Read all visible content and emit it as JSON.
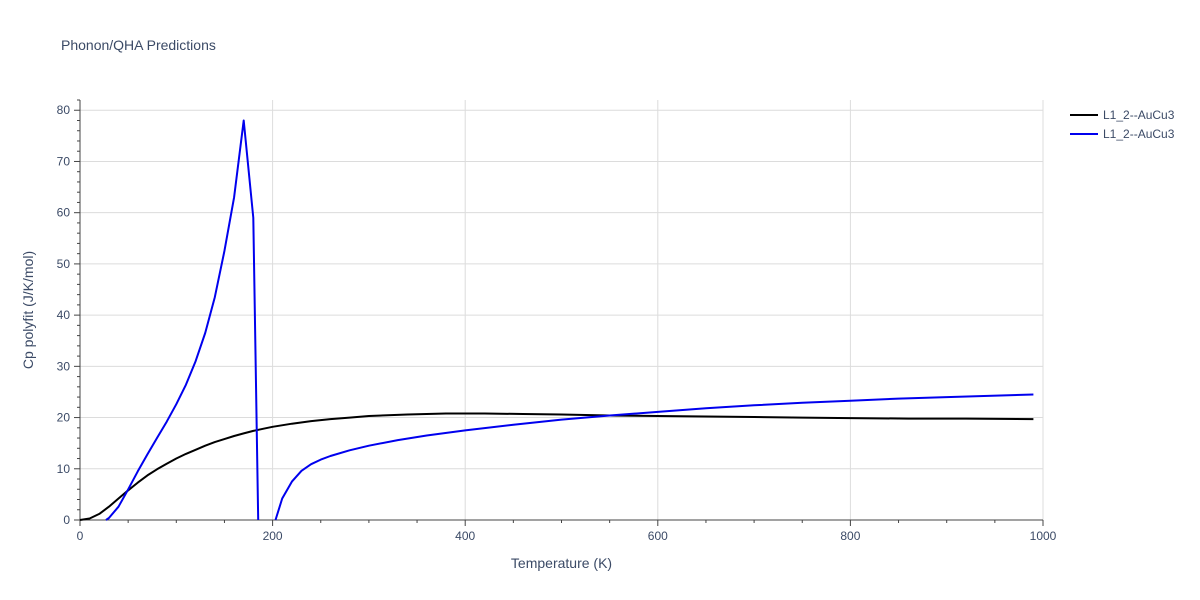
{
  "chart_data": {
    "type": "line",
    "title": "Phonon/QHA Predictions",
    "xlabel": "Temperature (K)",
    "ylabel": "Cp polyfit (J/K/mol)",
    "xlim": [
      0,
      1000
    ],
    "ylim": [
      0,
      82
    ],
    "x_ticks": [
      0,
      200,
      400,
      600,
      800,
      1000
    ],
    "y_ticks": [
      0,
      10,
      20,
      30,
      40,
      50,
      60,
      70,
      80
    ],
    "x_tick_labels": [
      "0",
      "200",
      "400",
      "600",
      "800",
      "1000"
    ],
    "y_tick_labels": [
      "0",
      "10",
      "20",
      "30",
      "40",
      "50",
      "60",
      "70",
      "80"
    ],
    "grid": true,
    "legend_position": "top-right",
    "series": [
      {
        "name": "L1_2--AuCu3",
        "color": "#000000",
        "x": [
          0,
          10,
          20,
          30,
          40,
          50,
          60,
          70,
          80,
          90,
          100,
          110,
          120,
          130,
          140,
          150,
          160,
          170,
          180,
          190,
          200,
          220,
          240,
          260,
          280,
          300,
          340,
          380,
          420,
          460,
          500,
          550,
          600,
          650,
          700,
          750,
          800,
          860,
          920,
          990
        ],
        "y": [
          0,
          0.3,
          1.2,
          2.6,
          4.2,
          5.8,
          7.3,
          8.7,
          9.9,
          11.0,
          12.0,
          12.9,
          13.7,
          14.5,
          15.2,
          15.8,
          16.4,
          16.9,
          17.4,
          17.8,
          18.2,
          18.8,
          19.3,
          19.7,
          20.0,
          20.3,
          20.6,
          20.8,
          20.8,
          20.7,
          20.6,
          20.4,
          20.3,
          20.2,
          20.1,
          20.0,
          19.9,
          19.8,
          19.8,
          19.7
        ]
      },
      {
        "name": "L1_2--AuCu3",
        "color": "#0000ee",
        "x": [
          0,
          27,
          30,
          40,
          50,
          60,
          70,
          80,
          90,
          100,
          110,
          120,
          130,
          140,
          150,
          160,
          170,
          180,
          185,
          186,
          200,
          203,
          210,
          220,
          230,
          240,
          250,
          260,
          280,
          300,
          330,
          360,
          400,
          450,
          500,
          550,
          600,
          650,
          700,
          750,
          800,
          850,
          900,
          990
        ],
        "y": [
          null,
          0,
          0.4,
          2.6,
          6.0,
          9.5,
          12.8,
          16.0,
          19.2,
          22.6,
          26.4,
          31.0,
          36.5,
          43.5,
          52.5,
          63.0,
          78.0,
          59.0,
          0,
          null,
          null,
          0,
          4.2,
          7.5,
          9.6,
          10.9,
          11.8,
          12.5,
          13.6,
          14.5,
          15.6,
          16.5,
          17.5,
          18.6,
          19.6,
          20.4,
          21.1,
          21.8,
          22.4,
          22.9,
          23.3,
          23.7,
          24.0,
          24.5
        ]
      }
    ]
  }
}
